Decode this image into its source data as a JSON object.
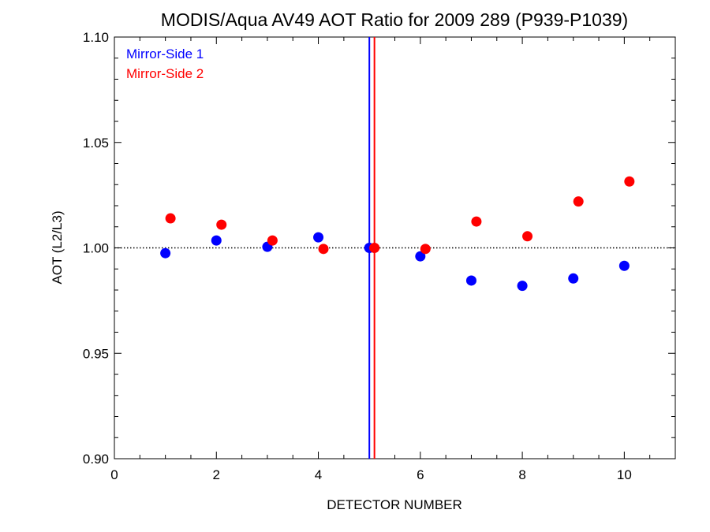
{
  "chart_data": {
    "type": "scatter",
    "title": "MODIS/Aqua AV49 AOT Ratio for 2009 289 (P939-P1039)",
    "xlabel": "DETECTOR NUMBER",
    "ylabel": "AOT (L2/L3)",
    "xlim": [
      0,
      11
    ],
    "ylim": [
      0.9,
      1.1
    ],
    "x_ticks": [
      0,
      2,
      4,
      6,
      8,
      10
    ],
    "x_tick_labels": [
      "0",
      "2",
      "4",
      "6",
      "8",
      "10"
    ],
    "y_ticks": [
      0.9,
      0.95,
      1.0,
      1.05,
      1.1
    ],
    "y_tick_labels": [
      "0.90",
      "0.95",
      "1.00",
      "1.05",
      "1.10"
    ],
    "reference_line": {
      "y": 1.0,
      "style": "dotted"
    },
    "vertical_lines": [
      {
        "x": 5.0,
        "color": "#0000ff"
      },
      {
        "x": 5.1,
        "color": "#ff0000"
      }
    ],
    "legend_position": "top-left",
    "series": [
      {
        "name": "Mirror-Side 1",
        "color": "#0000ff",
        "points": [
          {
            "x": 1.0,
            "y": 0.9975
          },
          {
            "x": 2.0,
            "y": 1.0035
          },
          {
            "x": 3.0,
            "y": 1.0005
          },
          {
            "x": 4.0,
            "y": 1.005
          },
          {
            "x": 5.0,
            "y": 1.0
          },
          {
            "x": 6.0,
            "y": 0.996
          },
          {
            "x": 7.0,
            "y": 0.9845
          },
          {
            "x": 8.0,
            "y": 0.982
          },
          {
            "x": 9.0,
            "y": 0.9855
          },
          {
            "x": 10.0,
            "y": 0.9915
          }
        ]
      },
      {
        "name": "Mirror-Side 2",
        "color": "#ff0000",
        "points": [
          {
            "x": 1.1,
            "y": 1.014
          },
          {
            "x": 2.1,
            "y": 1.011
          },
          {
            "x": 3.1,
            "y": 1.0035
          },
          {
            "x": 4.1,
            "y": 0.9995
          },
          {
            "x": 5.1,
            "y": 1.0
          },
          {
            "x": 6.1,
            "y": 0.9995
          },
          {
            "x": 7.1,
            "y": 1.0125
          },
          {
            "x": 8.1,
            "y": 1.0055
          },
          {
            "x": 9.1,
            "y": 1.022
          },
          {
            "x": 10.1,
            "y": 1.0315
          }
        ]
      }
    ]
  }
}
